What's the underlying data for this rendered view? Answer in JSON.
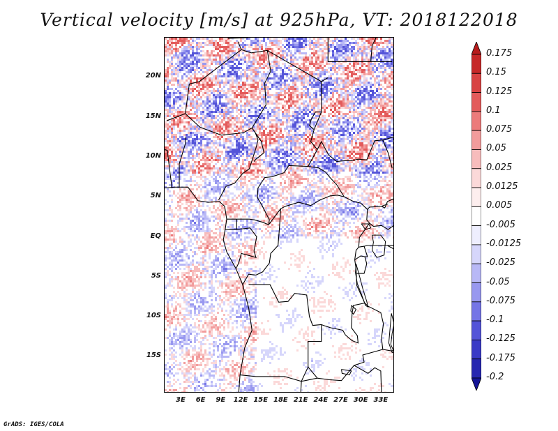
{
  "title": "Vertical velocity [m/s] at 925hPa, VT: 2018122018",
  "credit": "GrADS: IGES/COLA",
  "map": {
    "variable": "vertical velocity",
    "level": "925hPa",
    "valid_time": "2018122018",
    "units": "m/s",
    "lat_labels": [
      "20N",
      "15N",
      "10N",
      "5N",
      "EQ",
      "5S",
      "10S",
      "15S"
    ],
    "lat_values": [
      20,
      15,
      10,
      5,
      0,
      -5,
      -10,
      -15
    ],
    "lon_labels": [
      "3E",
      "6E",
      "9E",
      "12E",
      "15E",
      "18E",
      "21E",
      "24E",
      "27E",
      "30E",
      "33E"
    ],
    "lon_values": [
      3,
      6,
      9,
      12,
      15,
      18,
      21,
      24,
      27,
      30,
      33
    ]
  },
  "colorbar": {
    "labels": [
      "0.175",
      "0.15",
      "0.125",
      "0.1",
      "0.075",
      "0.05",
      "0.025",
      "0.0125",
      "0.005",
      "-0.005",
      "-0.0125",
      "-0.025",
      "-0.05",
      "-0.075",
      "-0.1",
      "-0.125",
      "-0.175",
      "-0.2"
    ],
    "colors": [
      "#b71c1c",
      "#c62828",
      "#d84343",
      "#e35b5b",
      "#ec7b7b",
      "#f29c9c",
      "#f7bcbc",
      "#fbd9d9",
      "#fdeeee",
      "#ffffff",
      "#eeeefe",
      "#d6d6fb",
      "#b8b8f6",
      "#9898ef",
      "#7575e6",
      "#5454d8",
      "#3a3ac6",
      "#2626b0",
      "#141496"
    ]
  }
}
